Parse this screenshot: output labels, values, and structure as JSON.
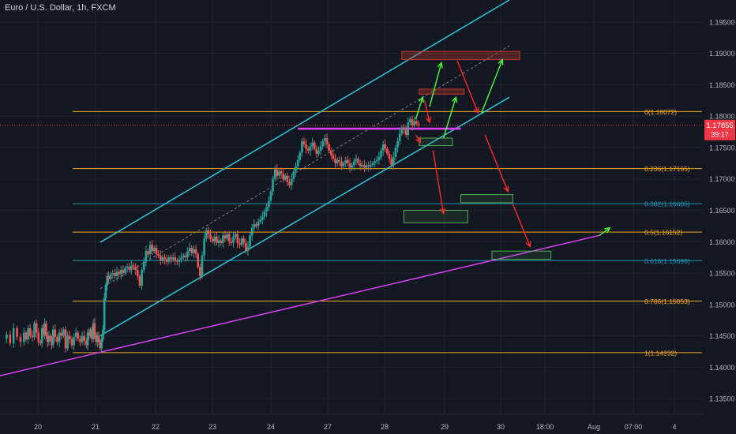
{
  "chart_title": "Euro / U.S. Dollar, 1h, FXCM",
  "colors": {
    "background": "#131722",
    "grid": "#1f2433",
    "axis_text": "#b2b5be",
    "up": "#26a69a",
    "down": "#ef5350",
    "fib_orange": "#f5a623",
    "fib_blue": "#2196b3",
    "channel": "#2ec4d6",
    "magenta": "#e040fb",
    "zone_green": "#4caf50",
    "zone_red": "#c0392b",
    "arrow_green": "#4cff3a",
    "arrow_red": "#ff2a2a",
    "price_label": "#f23645"
  },
  "price_axis": {
    "ticks": [
      "1.19500",
      "1.19000",
      "1.18500",
      "1.18000",
      "1.17500",
      "1.17000",
      "1.16500",
      "1.16000",
      "1.15500",
      "1.15000",
      "1.14500",
      "1.14000",
      "1.13500"
    ]
  },
  "time_axis": {
    "ticks": [
      "20",
      "21",
      "22",
      "23",
      "24",
      "27",
      "28",
      "29",
      "30",
      "18:00",
      "Aug",
      "07:00",
      "4"
    ]
  },
  "current_price": {
    "value": "1.17855",
    "countdown": "39:17"
  },
  "chart_data": {
    "type": "candlestick",
    "symbol": "Euro / U.S. Dollar",
    "interval": "1h",
    "source": "FXCM",
    "ylim": [
      1.1325,
      1.1985
    ],
    "fib_levels": [
      {
        "ratio": 0,
        "price": 1.18072,
        "label": "0(1.18072)",
        "color": "orange"
      },
      {
        "ratio": 0.236,
        "price": 1.17165,
        "label": "0.236(1.17165)",
        "color": "orange"
      },
      {
        "ratio": 0.382,
        "price": 1.16605,
        "label": "0.382(1.16605)",
        "color": "blue"
      },
      {
        "ratio": 0.5,
        "price": 1.16152,
        "label": "0.5(1.16152)",
        "color": "orange"
      },
      {
        "ratio": 0.618,
        "price": 1.15698,
        "label": "0.618(1.15698)",
        "color": "blue"
      },
      {
        "ratio": 0.786,
        "price": 1.15053,
        "label": "0.786(1.15053)",
        "color": "orange"
      },
      {
        "ratio": 1,
        "price": 1.14232,
        "label": "1(1.14232)",
        "color": "orange"
      }
    ],
    "price_path": [
      [
        0,
        1.1445
      ],
      [
        0.5,
        1.1452
      ],
      [
        1,
        1.1438
      ],
      [
        1.5,
        1.1462
      ],
      [
        2,
        1.1448
      ],
      [
        2.5,
        1.144
      ],
      [
        3,
        1.1455
      ],
      [
        3.3,
        1.1444
      ],
      [
        3.6,
        1.1462
      ],
      [
        3.9,
        1.145
      ],
      [
        4.2,
        1.1448
      ],
      [
        4.5,
        1.147
      ],
      [
        4.8,
        1.1455
      ],
      [
        5.1,
        1.144
      ],
      [
        5.4,
        1.1438
      ],
      [
        5.6,
        1.1462
      ],
      [
        5.8,
        1.1452
      ],
      [
        6.0,
        1.147
      ],
      [
        6.2,
        1.145
      ],
      [
        6.4,
        1.144
      ],
      [
        6.6,
        1.145
      ],
      [
        6.8,
        1.1445
      ],
      [
        7.0,
        1.1435
      ],
      [
        7.2,
        1.146
      ],
      [
        7.5,
        1.1448
      ],
      [
        7.8,
        1.144
      ],
      [
        8.1,
        1.1455
      ],
      [
        8.4,
        1.145
      ],
      [
        8.7,
        1.146
      ],
      [
        9.0,
        1.143
      ],
      [
        9.3,
        1.145
      ],
      [
        9.6,
        1.1445
      ],
      [
        9.9,
        1.1435
      ],
      [
        10.2,
        1.1448
      ],
      [
        10.5,
        1.1455
      ],
      [
        10.8,
        1.1445
      ],
      [
        11.1,
        1.144
      ],
      [
        11.4,
        1.145
      ],
      [
        11.7,
        1.1442
      ],
      [
        12.0,
        1.1435
      ],
      [
        12.2,
        1.1455
      ],
      [
        12.4,
        1.145
      ],
      [
        12.6,
        1.146
      ],
      [
        12.8,
        1.1445
      ],
      [
        13.0,
        1.147
      ],
      [
        13.2,
        1.1452
      ],
      [
        13.4,
        1.144
      ],
      [
        13.6,
        1.145
      ],
      [
        13.8,
        1.144
      ],
      [
        14.0,
        1.143
      ],
      [
        14.2,
        1.1445
      ],
      [
        14.4,
        1.146
      ],
      [
        14.6,
        1.151
      ],
      [
        14.8,
        1.153
      ],
      [
        15.0,
        1.1545
      ],
      [
        15.2,
        1.154
      ],
      [
        15.5,
        1.1548
      ],
      [
        15.8,
        1.155
      ],
      [
        16.1,
        1.1545
      ],
      [
        16.4,
        1.1552
      ],
      [
        16.7,
        1.1548
      ],
      [
        17.0,
        1.1555
      ],
      [
        17.3,
        1.155
      ],
      [
        17.6,
        1.1558
      ],
      [
        17.9,
        1.156
      ],
      [
        18.2,
        1.1555
      ],
      [
        18.5,
        1.1562
      ],
      [
        18.8,
        1.156
      ],
      [
        19.1,
        1.1555
      ],
      [
        19.4,
        1.1545
      ],
      [
        19.7,
        1.153
      ],
      [
        20.0,
        1.1555
      ],
      [
        20.3,
        1.1568
      ],
      [
        20.6,
        1.1585
      ],
      [
        20.9,
        1.158
      ],
      [
        21.2,
        1.1595
      ],
      [
        21.5,
        1.1585
      ],
      [
        21.8,
        1.159
      ],
      [
        22.1,
        1.158
      ],
      [
        22.4,
        1.1578
      ],
      [
        22.7,
        1.157
      ],
      [
        23.0,
        1.1575
      ],
      [
        23.3,
        1.1572
      ],
      [
        23.6,
        1.1568
      ],
      [
        23.9,
        1.1575
      ],
      [
        24.2,
        1.1572
      ],
      [
        24.5,
        1.1575
      ],
      [
        24.8,
        1.157
      ],
      [
        25.1,
        1.1568
      ],
      [
        25.4,
        1.1572
      ],
      [
        25.7,
        1.1575
      ],
      [
        26.0,
        1.1578
      ],
      [
        26.3,
        1.1575
      ],
      [
        26.6,
        1.1585
      ],
      [
        26.9,
        1.159
      ],
      [
        27.2,
        1.1582
      ],
      [
        27.5,
        1.1588
      ],
      [
        27.8,
        1.158
      ],
      [
        28.1,
        1.156
      ],
      [
        28.4,
        1.1545
      ],
      [
        28.7,
        1.1578
      ],
      [
        29.0,
        1.1605
      ],
      [
        29.3,
        1.1618
      ],
      [
        29.6,
        1.1612
      ],
      [
        29.9,
        1.1605
      ],
      [
        30.2,
        1.16
      ],
      [
        30.5,
        1.1608
      ],
      [
        30.8,
        1.1598
      ],
      [
        31.1,
        1.1602
      ],
      [
        31.4,
        1.1598
      ],
      [
        31.7,
        1.161
      ],
      [
        32.0,
        1.1605
      ],
      [
        32.3,
        1.1612
      ],
      [
        32.6,
        1.16
      ],
      [
        32.9,
        1.1598
      ],
      [
        33.2,
        1.1608
      ],
      [
        33.5,
        1.1612
      ],
      [
        33.8,
        1.1598
      ],
      [
        34.1,
        1.1595
      ],
      [
        34.4,
        1.1605
      ],
      [
        34.7,
        1.1598
      ],
      [
        35.0,
        1.1585
      ],
      [
        35.3,
        1.1592
      ],
      [
        35.6,
        1.161
      ],
      [
        35.9,
        1.1622
      ],
      [
        36.2,
        1.1628
      ],
      [
        36.5,
        1.1625
      ],
      [
        36.8,
        1.1632
      ],
      [
        37.1,
        1.1635
      ],
      [
        37.4,
        1.164
      ],
      [
        37.7,
        1.1648
      ],
      [
        38.0,
        1.1655
      ],
      [
        38.3,
        1.1665
      ],
      [
        38.6,
        1.168
      ],
      [
        38.9,
        1.17
      ],
      [
        39.2,
        1.1715
      ],
      [
        39.5,
        1.1705
      ],
      [
        39.8,
        1.1712
      ],
      [
        40.1,
        1.1708
      ],
      [
        40.4,
        1.17
      ],
      [
        40.7,
        1.1705
      ],
      [
        41.0,
        1.1695
      ],
      [
        41.3,
        1.169
      ],
      [
        41.6,
        1.17
      ],
      [
        41.9,
        1.1712
      ],
      [
        42.2,
        1.172
      ],
      [
        42.5,
        1.173
      ],
      [
        42.8,
        1.1742
      ],
      [
        43.1,
        1.176
      ],
      [
        43.4,
        1.1755
      ],
      [
        43.7,
        1.1748
      ],
      [
        44.0,
        1.1745
      ],
      [
        44.3,
        1.1752
      ],
      [
        44.6,
        1.1758
      ],
      [
        44.9,
        1.1748
      ],
      [
        45.2,
        1.174
      ],
      [
        45.5,
        1.1745
      ],
      [
        45.8,
        1.1752
      ],
      [
        46.1,
        1.176
      ],
      [
        46.4,
        1.1765
      ],
      [
        46.7,
        1.1755
      ],
      [
        47.0,
        1.1745
      ],
      [
        47.3,
        1.1738
      ],
      [
        47.6,
        1.1732
      ],
      [
        47.9,
        1.1725
      ],
      [
        48.2,
        1.173
      ],
      [
        48.5,
        1.1728
      ],
      [
        48.8,
        1.172
      ],
      [
        49.1,
        1.1725
      ],
      [
        49.4,
        1.173
      ],
      [
        49.7,
        1.1725
      ],
      [
        50.0,
        1.1718
      ],
      [
        50.3,
        1.1722
      ],
      [
        50.6,
        1.1728
      ],
      [
        50.9,
        1.1732
      ],
      [
        51.2,
        1.1725
      ],
      [
        51.5,
        1.172
      ],
      [
        51.8,
        1.1722
      ],
      [
        52.1,
        1.1718
      ],
      [
        52.4,
        1.1722
      ],
      [
        52.7,
        1.172
      ],
      [
        53.0,
        1.1722
      ],
      [
        53.3,
        1.1725
      ],
      [
        53.6,
        1.1728
      ],
      [
        53.9,
        1.173
      ],
      [
        54.2,
        1.1735
      ],
      [
        54.5,
        1.1745
      ],
      [
        54.8,
        1.1755
      ],
      [
        55.1,
        1.1748
      ],
      [
        55.4,
        1.174
      ],
      [
        55.7,
        1.1732
      ],
      [
        56.0,
        1.1722
      ],
      [
        56.3,
        1.1735
      ],
      [
        56.6,
        1.175
      ],
      [
        56.9,
        1.176
      ],
      [
        57.2,
        1.1772
      ],
      [
        57.5,
        1.1782
      ],
      [
        57.8,
        1.1778
      ],
      [
        58.1,
        1.177
      ],
      [
        58.4,
        1.179
      ],
      [
        58.7,
        1.1795
      ],
      [
        59.0,
        1.1785
      ],
      [
        59.3,
        1.1792
      ],
      [
        59.6,
        1.1788
      ],
      [
        59.9,
        1.1786
      ]
    ],
    "annotations": {
      "ascending_channel": {
        "upper": [
          [
            14,
            1.1599
          ],
          [
            73,
            1.1985
          ]
        ],
        "lower": [
          [
            14,
            1.145
          ],
          [
            73,
            1.183
          ]
        ]
      },
      "midline_dashed": [
        [
          14,
          1.1525
        ],
        [
          73,
          1.1912
        ]
      ],
      "horizontal_resistance": [
        [
          42.5,
          1.178
        ],
        [
          66,
          1.178
        ]
      ],
      "long_term_support": [
        [
          -1,
          1.1385
        ],
        [
          86,
          1.161
        ]
      ],
      "zones": [
        {
          "kind": "resistance",
          "x": [
            57.5,
            74.5
          ],
          "y": [
            1.189,
            1.1903
          ]
        },
        {
          "kind": "resistance",
          "x": [
            60,
            66.5
          ],
          "y": [
            1.1835,
            1.1843
          ]
        },
        {
          "kind": "support",
          "x": [
            60,
            64.8
          ],
          "y": [
            1.1753,
            1.1765
          ]
        },
        {
          "kind": "support",
          "x": [
            66,
            73.5
          ],
          "y": [
            1.1662,
            1.1675
          ]
        },
        {
          "kind": "support",
          "x": [
            57.8,
            67
          ],
          "y": [
            1.163,
            1.165
          ]
        },
        {
          "kind": "support",
          "x": [
            70.5,
            79
          ],
          "y": [
            1.1572,
            1.1585
          ]
        }
      ],
      "arrows": [
        {
          "kind": "up",
          "from": [
            59.5,
            1.1795
          ],
          "to": [
            60.5,
            1.183
          ]
        },
        {
          "kind": "up",
          "from": [
            61.5,
            1.1815
          ],
          "to": [
            63.2,
            1.1885
          ]
        },
        {
          "kind": "down",
          "from": [
            60.8,
            1.1825
          ],
          "to": [
            61.5,
            1.179
          ]
        },
        {
          "kind": "down",
          "from": [
            59.5,
            1.177
          ],
          "to": [
            60.2,
            1.1758
          ]
        },
        {
          "kind": "down",
          "from": [
            62,
            1.1745
          ],
          "to": [
            63.5,
            1.1645
          ]
        },
        {
          "kind": "up",
          "from": [
            63.5,
            1.1765
          ],
          "to": [
            65.3,
            1.183
          ]
        },
        {
          "kind": "down",
          "from": [
            65.5,
            1.1888
          ],
          "to": [
            68.5,
            1.1805
          ]
        },
        {
          "kind": "up",
          "from": [
            69,
            1.1805
          ],
          "to": [
            72,
            1.189
          ]
        },
        {
          "kind": "down",
          "from": [
            69.5,
            1.177
          ],
          "to": [
            72.8,
            1.168
          ]
        },
        {
          "kind": "down",
          "from": [
            73.5,
            1.166
          ],
          "to": [
            76,
            1.1592
          ]
        },
        {
          "kind": "up",
          "from": [
            86,
            1.161
          ],
          "to": [
            87.5,
            1.1622
          ]
        }
      ]
    }
  }
}
